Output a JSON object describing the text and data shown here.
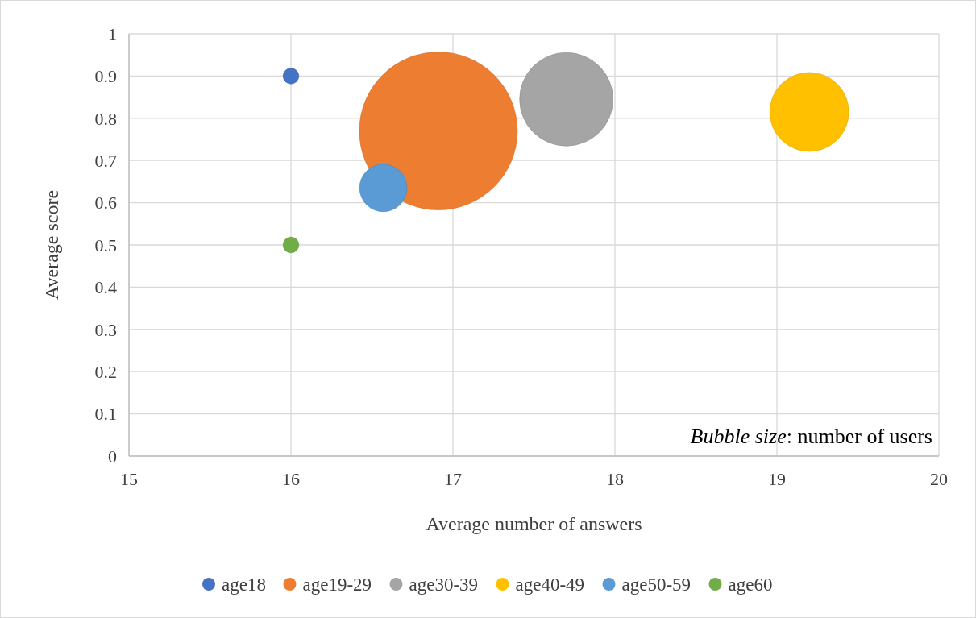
{
  "chart_data": {
    "type": "bubble",
    "xlabel": "Average number of answers",
    "ylabel": "Average score",
    "xlim": [
      15,
      20
    ],
    "xticks": [
      15,
      16,
      17,
      18,
      19,
      20
    ],
    "ylim": [
      0,
      1
    ],
    "yticks": [
      0,
      0.1,
      0.2,
      0.3,
      0.4,
      0.5,
      0.6,
      0.7,
      0.8,
      0.9,
      1
    ],
    "grid": true,
    "legend": "bottom",
    "marker": "circle",
    "annotations": [
      "Bubble size: number of users"
    ],
    "series": [
      {
        "name": "age18",
        "color": "#4472c4",
        "x": [
          16
        ],
        "values": [
          0.9
        ],
        "sizes": [
          0.01
        ]
      },
      {
        "name": "age19-29",
        "color": "#ed7d31",
        "x": [
          16.91
        ],
        "values": [
          0.77
        ],
        "sizes": [
          1
        ]
      },
      {
        "name": "age30-39",
        "color": "#a5a5a5",
        "x": [
          17.7
        ],
        "values": [
          0.845
        ],
        "sizes": [
          0.35
        ]
      },
      {
        "name": "age40-49",
        "color": "#ffc000",
        "x": [
          19.2
        ],
        "values": [
          0.815
        ],
        "sizes": [
          0.25
        ]
      },
      {
        "name": "age50-59",
        "color": "#5b9bd5",
        "x": [
          16.57
        ],
        "values": [
          0.635
        ],
        "sizes": [
          0.09
        ]
      },
      {
        "name": "age60",
        "color": "#70ad47",
        "x": [
          16
        ],
        "values": [
          0.5
        ],
        "sizes": [
          0.01
        ]
      }
    ]
  }
}
